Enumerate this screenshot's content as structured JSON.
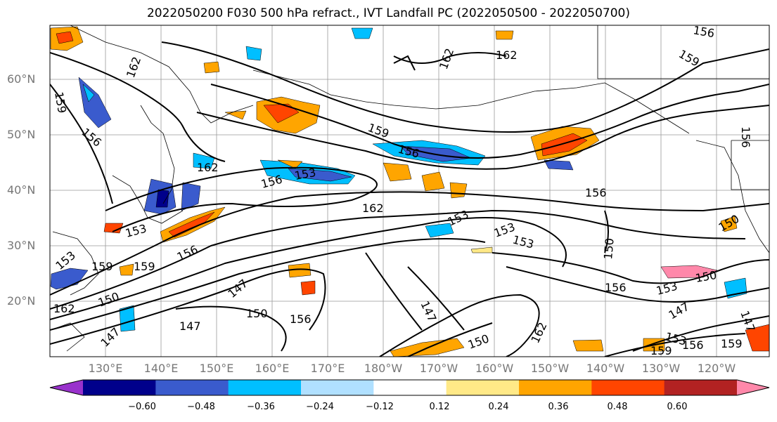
{
  "title": "2022050200 F030 500 hPa refract., IVT Landfall PC (2022050500 - 2022050700)",
  "lat_labels": [
    "60°N",
    "50°N",
    "40°N",
    "30°N",
    "20°N"
  ],
  "lon_labels": [
    "130°E",
    "140°E",
    "150°E",
    "160°E",
    "170°E",
    "180°W",
    "170°W",
    "160°W",
    "150°W",
    "140°W",
    "130°W",
    "120°W"
  ],
  "colorbar": {
    "ticks": [
      "−0.60",
      "−0.48",
      "−0.36",
      "−0.24",
      "−0.12",
      "0.12",
      "0.24",
      "0.36",
      "0.48",
      "0.60"
    ],
    "colors": [
      "#9932cc",
      "#00008b",
      "#3a5bcd",
      "#00bfff",
      "#b0e0ff",
      "#ffffff",
      "#ffe987",
      "#ffa500",
      "#ff4500",
      "#b22222",
      "#ff88aa"
    ]
  },
  "contour_labels": [
    "162",
    "159",
    "156",
    "153",
    "150",
    "147"
  ],
  "shading_colors": {
    "neg_strong": "#3a5bcd",
    "neg_mid": "#00bfff",
    "neg_weak": "#b0e0ff",
    "pos_weak": "#ffe987",
    "pos_mid": "#ffa500",
    "pos_strong": "#ff4500"
  }
}
